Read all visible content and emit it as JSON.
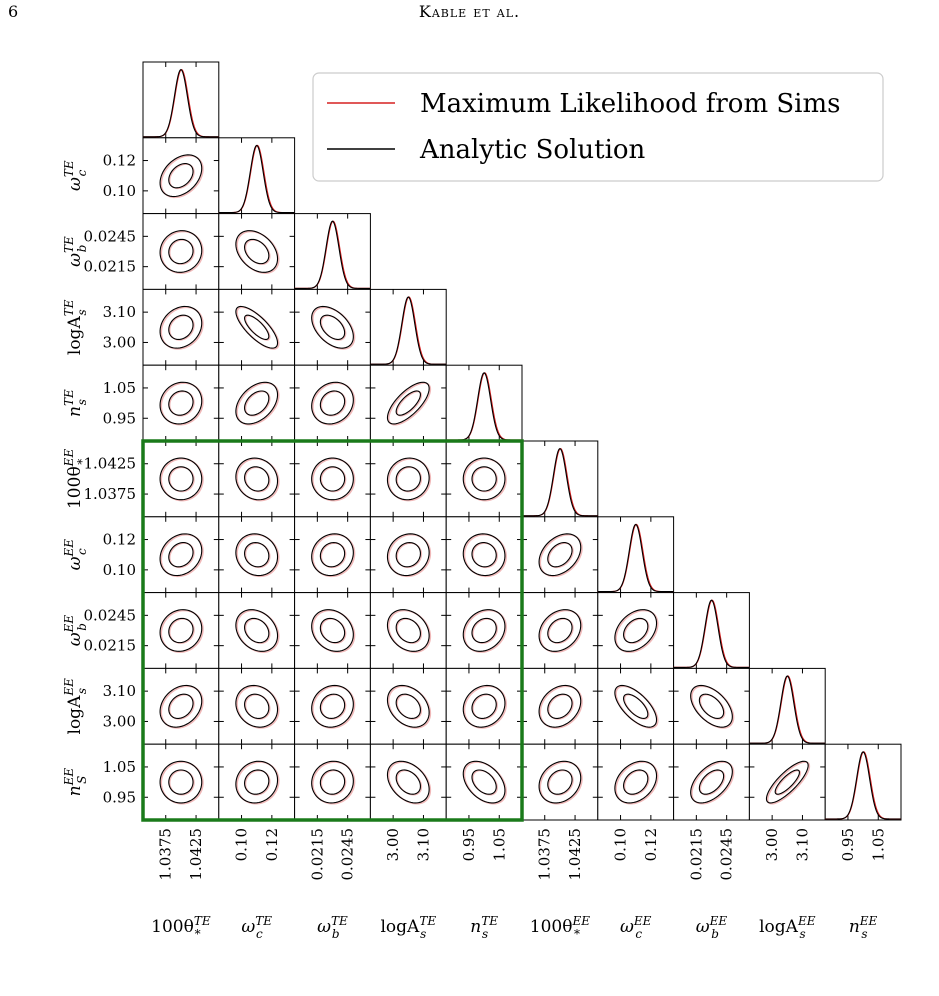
{
  "header": {
    "page_number": "6",
    "running_head": "Kable et al."
  },
  "colors": {
    "sims": "#d62020",
    "analytic": "#000000",
    "highlight_box": "#1a7a1a",
    "sims_faint": "#f0b8b8"
  },
  "chart_data": {
    "type": "corner-plot",
    "params": [
      {
        "id": "theta_TE",
        "base": "100θ",
        "sub": "*",
        "sup": "TE",
        "ticks": [
          "1.0375",
          "1.0425"
        ]
      },
      {
        "id": "omegac_TE",
        "base": "ω",
        "sub": "c",
        "sup": "TE",
        "ticks": [
          "0.10",
          "0.12"
        ]
      },
      {
        "id": "omegab_TE",
        "base": "ω",
        "sub": "b",
        "sup": "TE",
        "ticks": [
          "0.0215",
          "0.0245"
        ]
      },
      {
        "id": "logAs_TE",
        "base": "logA",
        "sub": "s",
        "sup": "TE",
        "ticks": [
          "3.00",
          "3.10"
        ]
      },
      {
        "id": "ns_TE",
        "base": "n",
        "sub": "s",
        "sup": "TE",
        "ticks": [
          "0.95",
          "1.05"
        ]
      },
      {
        "id": "theta_EE",
        "base": "100θ",
        "sub": "*",
        "sup": "EE",
        "ticks": [
          "1.0375",
          "1.0425"
        ]
      },
      {
        "id": "omegac_EE",
        "base": "ω",
        "sub": "c",
        "sup": "EE",
        "ticks": [
          "0.10",
          "0.12"
        ]
      },
      {
        "id": "omegab_EE",
        "base": "ω",
        "sub": "b",
        "sup": "EE",
        "ticks": [
          "0.0215",
          "0.0245"
        ]
      },
      {
        "id": "logAs_EE",
        "base": "logA",
        "sub": "s",
        "sup": "EE",
        "ticks": [
          "3.00",
          "3.10"
        ]
      },
      {
        "id": "ns_EE",
        "base": "n",
        "sub": "s",
        "sup": "EE",
        "ticks": [
          "0.95",
          "1.05"
        ]
      }
    ],
    "left_label_subs": {
      "ns_EE": "S"
    },
    "series": [
      {
        "name": "Maximum Likelihood from Sims",
        "color": "#d62020"
      },
      {
        "name": "Analytic Solution",
        "color": "#000000"
      }
    ],
    "correlations": {
      "1,0": 0.35,
      "2,0": 0.05,
      "2,1": -0.35,
      "3,0": 0.2,
      "3,1": -0.75,
      "3,2": -0.45,
      "4,0": 0.1,
      "4,1": 0.4,
      "4,2": 0.15,
      "4,3": 0.7,
      "5,0": 0.0,
      "5,1": -0.1,
      "5,2": 0.0,
      "5,3": 0.05,
      "5,4": 0.0,
      "6,0": 0.2,
      "6,1": -0.1,
      "6,2": 0.1,
      "6,3": 0.1,
      "6,4": -0.05,
      "6,5": 0.35,
      "7,0": 0.1,
      "7,1": -0.25,
      "7,2": -0.2,
      "7,3": -0.25,
      "7,4": 0.2,
      "7,5": 0.25,
      "7,6": 0.35,
      "8,0": 0.25,
      "8,1": -0.15,
      "8,2": 0.1,
      "8,3": -0.3,
      "8,4": 0.15,
      "8,5": 0.25,
      "8,6": -0.65,
      "8,7": -0.5,
      "9,0": 0.0,
      "9,1": 0.1,
      "9,2": 0.05,
      "9,3": -0.35,
      "9,4": -0.4,
      "9,5": 0.2,
      "9,6": 0.3,
      "9,7": 0.5,
      "9,8": 0.8
    },
    "highlight_region": {
      "rows": [
        5,
        9
      ],
      "cols": [
        0,
        4
      ]
    },
    "legend_position": "top-right"
  }
}
